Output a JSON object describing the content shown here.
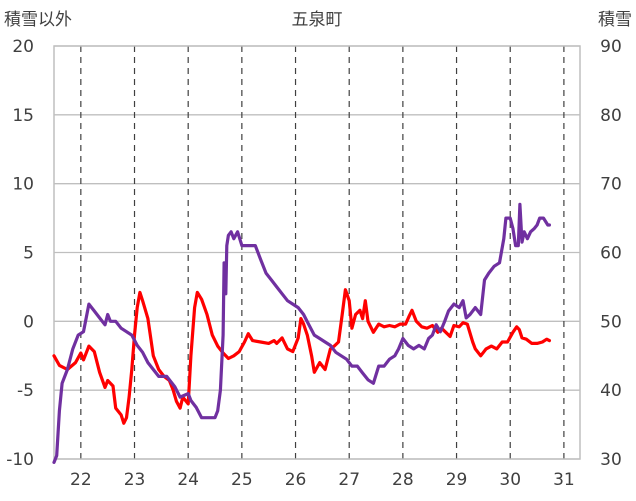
{
  "chart_data": {
    "type": "line",
    "title": "五泉町",
    "y_left_label": "積雪以外",
    "y_right_label": "積雪",
    "y_left_lim": [
      -10,
      20
    ],
    "y_left_ticks": [
      "-10",
      "-5",
      "0",
      "5",
      "10",
      "15",
      "20"
    ],
    "y_right_lim": [
      30,
      90
    ],
    "y_right_ticks": [
      "30",
      "40",
      "50",
      "60",
      "70",
      "80",
      "90"
    ],
    "x_lim": [
      21.5,
      31.3
    ],
    "x_ticks": [
      "22",
      "23",
      "24",
      "25",
      "26",
      "27",
      "28",
      "29",
      "30",
      "31"
    ],
    "grid": {
      "x": "dashed",
      "y": "solid"
    },
    "colors": {
      "temperature": "#ff0000",
      "snow_depth": "#7030a0",
      "grid": "#bfbfbf",
      "text": "#404040"
    },
    "series": [
      {
        "axis": "left",
        "color": "#ff0000",
        "points": [
          [
            21.5,
            -2.5
          ],
          [
            21.6,
            -3.2
          ],
          [
            21.75,
            -3.5
          ],
          [
            21.9,
            -3.0
          ],
          [
            22.0,
            -2.3
          ],
          [
            22.05,
            -2.8
          ],
          [
            22.15,
            -1.8
          ],
          [
            22.25,
            -2.2
          ],
          [
            22.35,
            -3.7
          ],
          [
            22.45,
            -4.8
          ],
          [
            22.5,
            -4.3
          ],
          [
            22.6,
            -4.7
          ],
          [
            22.65,
            -6.3
          ],
          [
            22.75,
            -6.8
          ],
          [
            22.8,
            -7.4
          ],
          [
            22.85,
            -7.0
          ],
          [
            22.9,
            -5.5
          ],
          [
            22.95,
            -3.5
          ],
          [
            23.0,
            -1.0
          ],
          [
            23.05,
            1.0
          ],
          [
            23.1,
            2.1
          ],
          [
            23.15,
            1.5
          ],
          [
            23.25,
            0.2
          ],
          [
            23.35,
            -2.5
          ],
          [
            23.45,
            -3.5
          ],
          [
            23.55,
            -4.0
          ],
          [
            23.65,
            -4.3
          ],
          [
            23.72,
            -5.0
          ],
          [
            23.78,
            -5.8
          ],
          [
            23.85,
            -6.3
          ],
          [
            23.9,
            -5.5
          ],
          [
            24.0,
            -6.0
          ],
          [
            24.05,
            -2.5
          ],
          [
            24.12,
            1.0
          ],
          [
            24.17,
            2.1
          ],
          [
            24.25,
            1.6
          ],
          [
            24.35,
            0.5
          ],
          [
            24.45,
            -1.0
          ],
          [
            24.55,
            -1.8
          ],
          [
            24.65,
            -2.3
          ],
          [
            24.75,
            -2.7
          ],
          [
            24.85,
            -2.5
          ],
          [
            24.95,
            -2.2
          ],
          [
            25.05,
            -1.5
          ],
          [
            25.12,
            -0.9
          ],
          [
            25.2,
            -1.4
          ],
          [
            25.35,
            -1.5
          ],
          [
            25.5,
            -1.6
          ],
          [
            25.6,
            -1.4
          ],
          [
            25.65,
            -1.6
          ],
          [
            25.75,
            -1.2
          ],
          [
            25.85,
            -2.0
          ],
          [
            25.95,
            -2.2
          ],
          [
            26.05,
            -1.2
          ],
          [
            26.1,
            0.2
          ],
          [
            26.15,
            -0.2
          ],
          [
            26.22,
            -1.0
          ],
          [
            26.3,
            -2.5
          ],
          [
            26.35,
            -3.7
          ],
          [
            26.45,
            -3.0
          ],
          [
            26.55,
            -3.5
          ],
          [
            26.65,
            -2.0
          ],
          [
            26.72,
            -1.8
          ],
          [
            26.8,
            -1.5
          ],
          [
            26.87,
            0.5
          ],
          [
            26.93,
            2.3
          ],
          [
            27.0,
            1.5
          ],
          [
            27.05,
            -0.5
          ],
          [
            27.12,
            0.5
          ],
          [
            27.2,
            0.8
          ],
          [
            27.25,
            0.2
          ],
          [
            27.3,
            1.5
          ],
          [
            27.35,
            0.0
          ],
          [
            27.45,
            -0.8
          ],
          [
            27.55,
            -0.2
          ],
          [
            27.65,
            -0.4
          ],
          [
            27.75,
            -0.3
          ],
          [
            27.85,
            -0.4
          ],
          [
            27.95,
            -0.2
          ],
          [
            28.05,
            -0.2
          ],
          [
            28.12,
            0.4
          ],
          [
            28.17,
            0.8
          ],
          [
            28.25,
            0.0
          ],
          [
            28.35,
            -0.4
          ],
          [
            28.45,
            -0.5
          ],
          [
            28.55,
            -0.3
          ],
          [
            28.65,
            -0.8
          ],
          [
            28.72,
            -0.5
          ],
          [
            28.8,
            -0.8
          ],
          [
            28.88,
            -1.1
          ],
          [
            28.95,
            -0.3
          ],
          [
            29.05,
            -0.4
          ],
          [
            29.12,
            -0.1
          ],
          [
            29.2,
            -0.2
          ],
          [
            29.3,
            -1.5
          ],
          [
            29.35,
            -2.0
          ],
          [
            29.45,
            -2.5
          ],
          [
            29.55,
            -2.0
          ],
          [
            29.65,
            -1.8
          ],
          [
            29.75,
            -2.0
          ],
          [
            29.85,
            -1.5
          ],
          [
            29.95,
            -1.5
          ],
          [
            30.05,
            -0.8
          ],
          [
            30.12,
            -0.4
          ],
          [
            30.17,
            -0.6
          ],
          [
            30.22,
            -1.2
          ],
          [
            30.3,
            -1.3
          ],
          [
            30.4,
            -1.6
          ],
          [
            30.5,
            -1.6
          ],
          [
            30.6,
            -1.5
          ],
          [
            30.68,
            -1.3
          ],
          [
            30.73,
            -1.4
          ]
        ]
      },
      {
        "axis": "right",
        "color": "#7030a0",
        "points": [
          [
            21.5,
            29.5
          ],
          [
            21.55,
            30.5
          ],
          [
            21.6,
            37.0
          ],
          [
            21.65,
            41.0
          ],
          [
            21.75,
            43.0
          ],
          [
            21.85,
            46.0
          ],
          [
            21.95,
            48.0
          ],
          [
            22.05,
            48.5
          ],
          [
            22.1,
            50.5
          ],
          [
            22.15,
            52.5
          ],
          [
            22.25,
            51.5
          ],
          [
            22.35,
            50.5
          ],
          [
            22.45,
            49.5
          ],
          [
            22.5,
            51.0
          ],
          [
            22.55,
            50.0
          ],
          [
            22.65,
            50.0
          ],
          [
            22.75,
            49.0
          ],
          [
            22.85,
            48.5
          ],
          [
            22.95,
            48.0
          ],
          [
            23.05,
            46.5
          ],
          [
            23.15,
            45.5
          ],
          [
            23.25,
            44.0
          ],
          [
            23.35,
            43.0
          ],
          [
            23.45,
            42.0
          ],
          [
            23.6,
            42.0
          ],
          [
            23.75,
            40.5
          ],
          [
            23.85,
            39.0
          ],
          [
            24.0,
            39.5
          ],
          [
            24.05,
            38.5
          ],
          [
            24.15,
            37.5
          ],
          [
            24.25,
            36.0
          ],
          [
            24.4,
            36.0
          ],
          [
            24.5,
            36.0
          ],
          [
            24.55,
            37.0
          ],
          [
            24.6,
            40.0
          ],
          [
            24.65,
            48.0
          ],
          [
            24.67,
            58.5
          ],
          [
            24.7,
            54.0
          ],
          [
            24.72,
            61.0
          ],
          [
            24.75,
            62.5
          ],
          [
            24.8,
            63.0
          ],
          [
            24.85,
            62.0
          ],
          [
            24.92,
            63.0
          ],
          [
            25.0,
            61.0
          ],
          [
            25.15,
            61.0
          ],
          [
            25.25,
            61.0
          ],
          [
            25.35,
            59.0
          ],
          [
            25.45,
            57.0
          ],
          [
            25.55,
            56.0
          ],
          [
            25.65,
            55.0
          ],
          [
            25.75,
            54.0
          ],
          [
            25.85,
            53.0
          ],
          [
            25.95,
            52.5
          ],
          [
            26.05,
            52.0
          ],
          [
            26.15,
            51.0
          ],
          [
            26.25,
            49.5
          ],
          [
            26.35,
            48.0
          ],
          [
            26.45,
            47.5
          ],
          [
            26.55,
            47.0
          ],
          [
            26.65,
            46.5
          ],
          [
            26.75,
            45.5
          ],
          [
            26.85,
            45.0
          ],
          [
            26.95,
            44.5
          ],
          [
            27.05,
            43.5
          ],
          [
            27.15,
            43.5
          ],
          [
            27.25,
            42.5
          ],
          [
            27.35,
            41.5
          ],
          [
            27.45,
            41.0
          ],
          [
            27.55,
            43.5
          ],
          [
            27.65,
            43.5
          ],
          [
            27.75,
            44.5
          ],
          [
            27.85,
            45.0
          ],
          [
            27.92,
            46.0
          ],
          [
            28.0,
            47.5
          ],
          [
            28.1,
            46.5
          ],
          [
            28.2,
            46.0
          ],
          [
            28.3,
            46.5
          ],
          [
            28.4,
            46.0
          ],
          [
            28.48,
            47.5
          ],
          [
            28.55,
            48.0
          ],
          [
            28.62,
            49.5
          ],
          [
            28.7,
            48.5
          ],
          [
            28.78,
            50.0
          ],
          [
            28.85,
            51.5
          ],
          [
            28.95,
            52.5
          ],
          [
            29.05,
            52.0
          ],
          [
            29.12,
            53.0
          ],
          [
            29.18,
            50.5
          ],
          [
            29.25,
            51.0
          ],
          [
            29.35,
            52.0
          ],
          [
            29.45,
            51.0
          ],
          [
            29.52,
            56.0
          ],
          [
            29.6,
            57.0
          ],
          [
            29.7,
            58.0
          ],
          [
            29.8,
            58.5
          ],
          [
            29.88,
            62.0
          ],
          [
            29.92,
            65.0
          ],
          [
            30.0,
            65.0
          ],
          [
            30.05,
            63.5
          ],
          [
            30.1,
            61.0
          ],
          [
            30.15,
            61.0
          ],
          [
            30.18,
            67.0
          ],
          [
            30.22,
            61.5
          ],
          [
            30.26,
            63.0
          ],
          [
            30.32,
            62.0
          ],
          [
            30.38,
            63.0
          ],
          [
            30.45,
            63.5
          ],
          [
            30.5,
            64.0
          ],
          [
            30.55,
            65.0
          ],
          [
            30.62,
            65.0
          ],
          [
            30.7,
            64.0
          ],
          [
            30.73,
            64.0
          ]
        ]
      }
    ]
  }
}
